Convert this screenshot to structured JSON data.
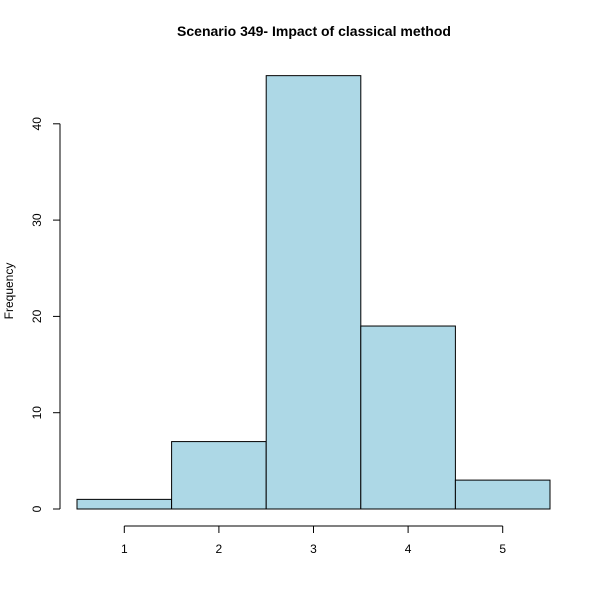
{
  "chart_data": {
    "type": "bar",
    "title": "Scenario 349- Impact of classical method",
    "xlabel": "",
    "ylabel": "Frequency",
    "categories": [
      "1",
      "2",
      "3",
      "4",
      "5"
    ],
    "x": [
      1,
      2,
      3,
      4,
      5
    ],
    "values": [
      1,
      7,
      45,
      19,
      3
    ],
    "xlim": [
      0.5,
      5.5
    ],
    "ylim": [
      0,
      45
    ],
    "yticks": [
      "0",
      "10",
      "20",
      "30",
      "40"
    ],
    "xticks": [
      "1",
      "2",
      "3",
      "4",
      "5"
    ],
    "bar_color": "#add8e6",
    "grid": false,
    "legend": "none"
  }
}
